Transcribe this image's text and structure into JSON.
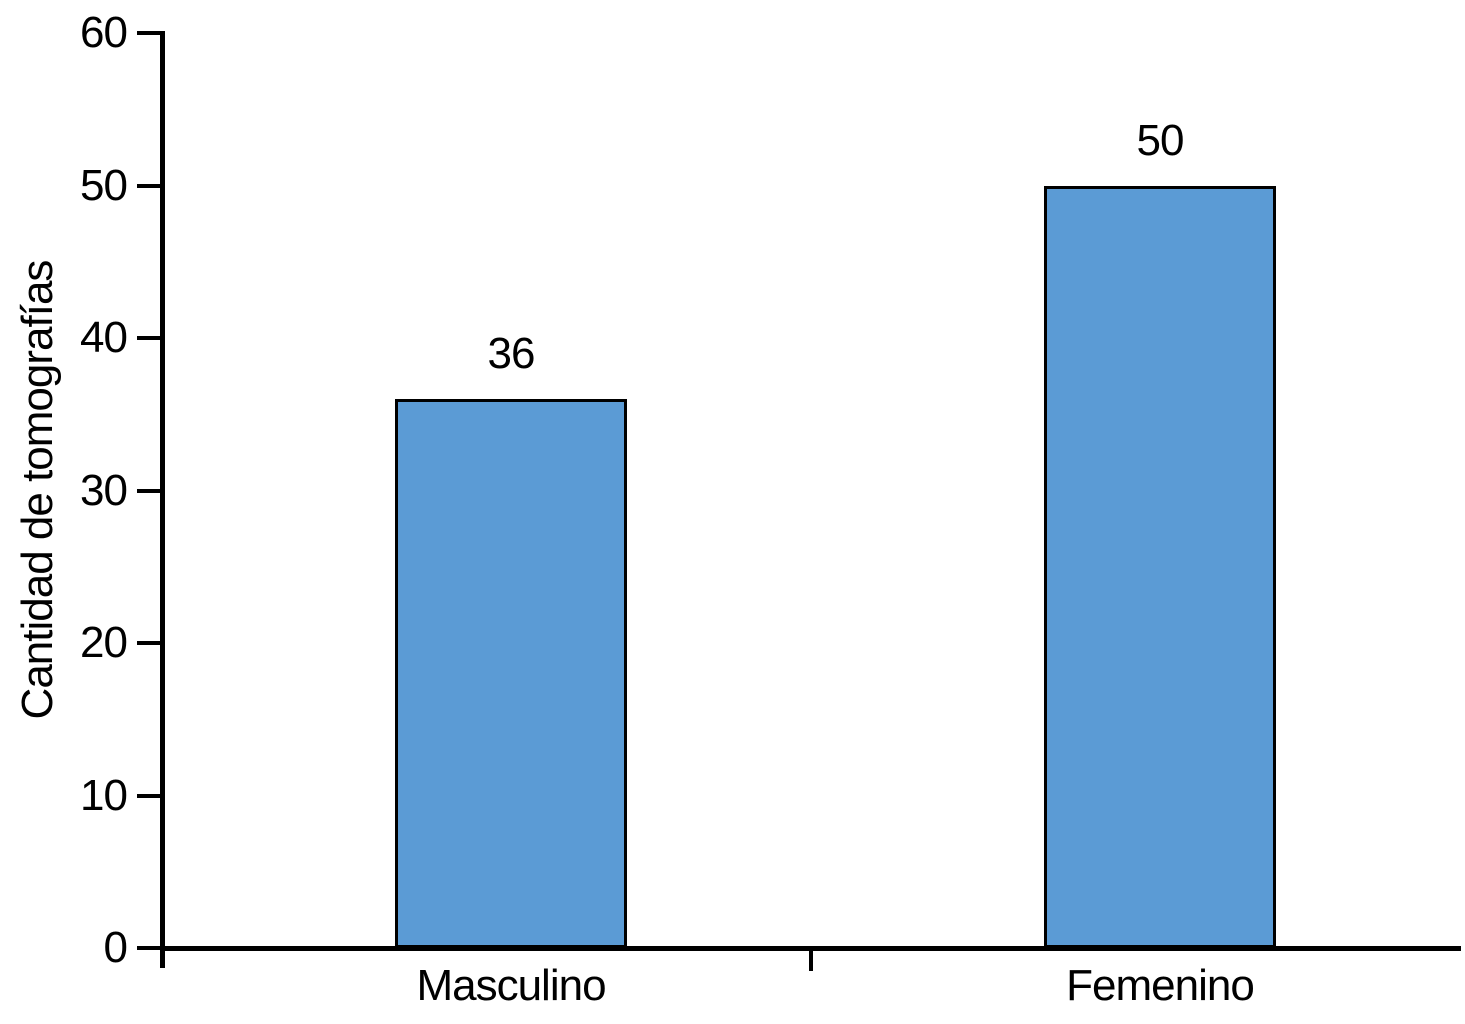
{
  "chart_data": {
    "type": "bar",
    "categories": [
      "Masculino",
      "Femenino"
    ],
    "values": [
      36,
      50
    ],
    "data_labels": [
      "36",
      "50"
    ],
    "title": "",
    "xlabel": "",
    "ylabel": "Cantidad de tomografías",
    "ylim": [
      0,
      60
    ],
    "yticks": [
      0,
      10,
      20,
      30,
      40,
      50,
      60
    ],
    "grid": false,
    "legend": "none",
    "bar_fill_color": "#5B9BD5",
    "bar_border_color": "#000000",
    "axis_color": "#000000",
    "text_color": "#000000"
  }
}
